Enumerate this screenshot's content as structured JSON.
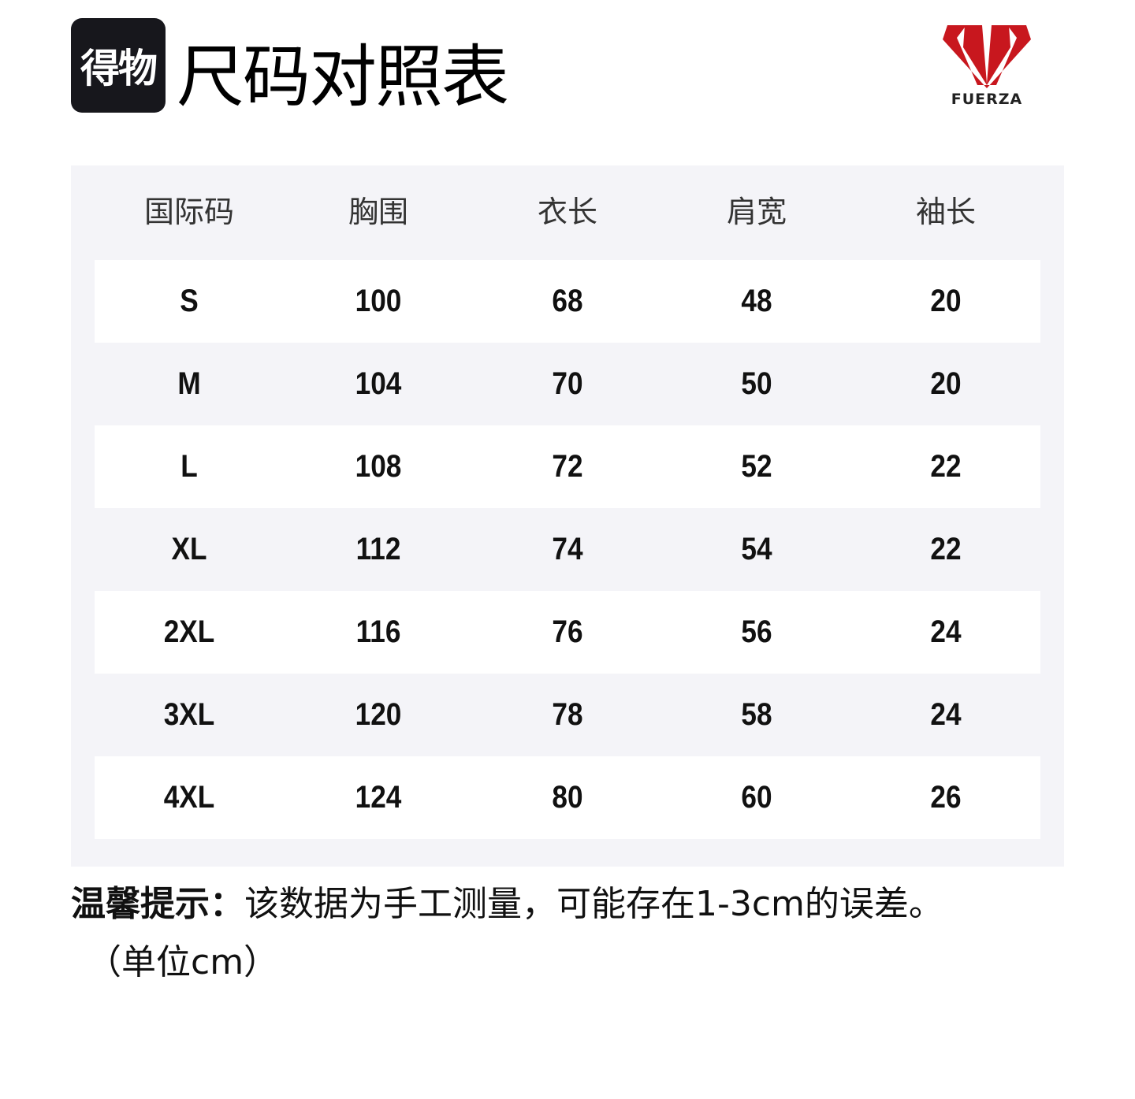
{
  "header": {
    "badge_text": "得物",
    "title": "尺码对照表",
    "brand_logo_text": "FUERZA",
    "brand_color": "#c8171e"
  },
  "table": {
    "columns": [
      "国际码",
      "胸围",
      "衣长",
      "肩宽",
      "袖长"
    ],
    "rows": [
      [
        "S",
        "100",
        "68",
        "48",
        "20"
      ],
      [
        "M",
        "104",
        "70",
        "50",
        "20"
      ],
      [
        "L",
        "108",
        "72",
        "52",
        "22"
      ],
      [
        "XL",
        "112",
        "74",
        "54",
        "22"
      ],
      [
        "2XL",
        "116",
        "76",
        "56",
        "24"
      ],
      [
        "3XL",
        "120",
        "78",
        "58",
        "24"
      ],
      [
        "4XL",
        "124",
        "80",
        "60",
        "26"
      ]
    ]
  },
  "footer": {
    "tip_label": "温馨提示：",
    "tip_text": "该数据为手工测量，可能存在1-3cm的误差。",
    "unit_note": "（单位cm）"
  }
}
